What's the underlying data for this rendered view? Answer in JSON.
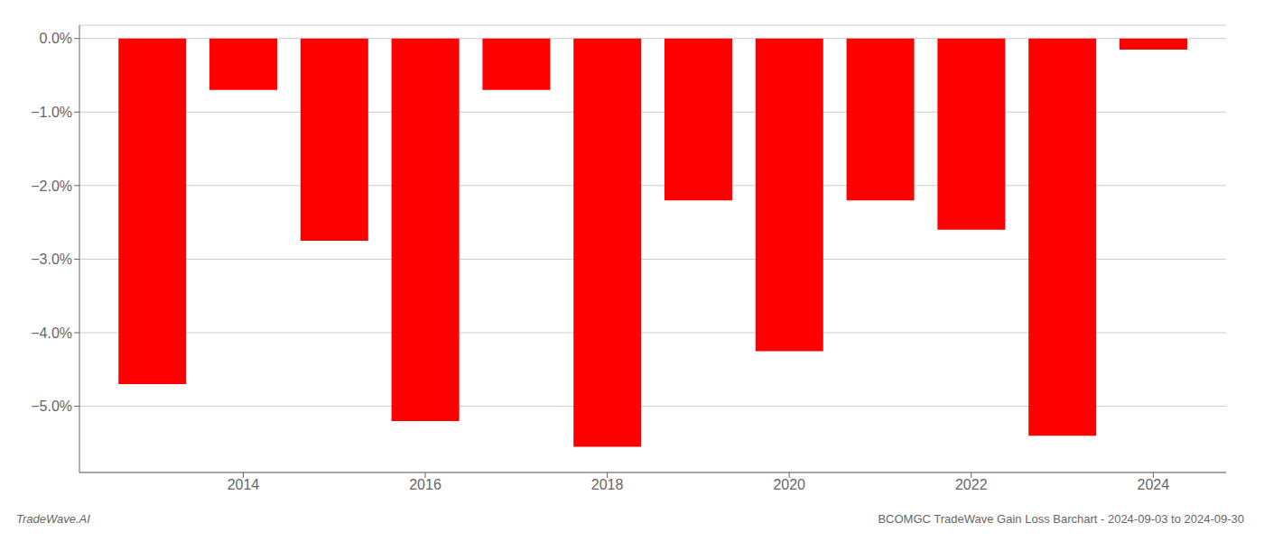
{
  "chart_data": {
    "type": "bar",
    "title": "BCOMGC TradeWave Gain Loss Barchart - 2024-09-03 to 2024-09-30",
    "annotations": [
      "TradeWave.AI"
    ],
    "x": [
      2013,
      2014,
      2015,
      2016,
      2017,
      2018,
      2019,
      2020,
      2021,
      2022,
      2023,
      2024
    ],
    "values": [
      -4.7,
      -0.7,
      -2.75,
      -5.2,
      -0.7,
      -5.55,
      -2.2,
      -4.25,
      -2.2,
      -2.6,
      -5.4,
      -0.15
    ],
    "color": "#ff0000",
    "xlim": [
      2012.2,
      2024.8
    ],
    "xticks": [
      2014,
      2016,
      2018,
      2020,
      2022,
      2024
    ],
    "ylim": [
      -5.9,
      0.18
    ],
    "yticks": [
      {
        "value": 0.0,
        "label": "0.0%"
      },
      {
        "value": -1.0,
        "label": "−1.0%"
      },
      {
        "value": -2.0,
        "label": "−2.0%"
      },
      {
        "value": -3.0,
        "label": "−3.0%"
      },
      {
        "value": -4.0,
        "label": "−4.0%"
      },
      {
        "value": -5.0,
        "label": "−5.0%"
      }
    ],
    "grid": true
  }
}
